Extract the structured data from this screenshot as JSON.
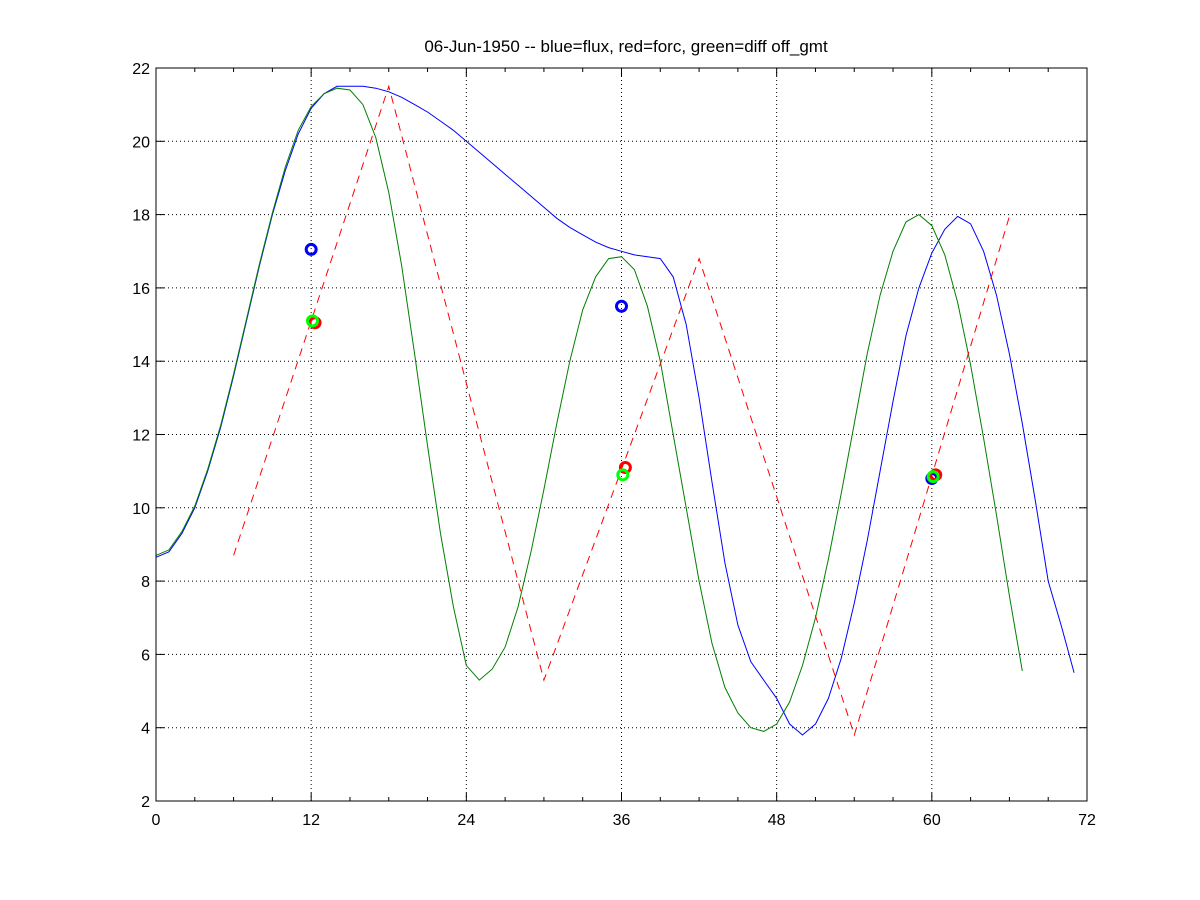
{
  "chart_data": {
    "type": "line",
    "title": "06-Jun-1950 -- blue=flux, red=forc, green=diff off_gmt",
    "xlabel": "",
    "ylabel": "",
    "xlim": [
      0,
      72
    ],
    "ylim": [
      2,
      22
    ],
    "x_ticks": [
      0,
      12,
      24,
      36,
      48,
      60,
      72
    ],
    "y_ticks": [
      2,
      4,
      6,
      8,
      10,
      12,
      14,
      16,
      18,
      20,
      22
    ],
    "x_tick_labels": [
      "0",
      "12",
      "24",
      "36",
      "48",
      "60",
      "72"
    ],
    "y_tick_labels": [
      "2",
      "4",
      "6",
      "8",
      "10",
      "12",
      "14",
      "16",
      "18",
      "20",
      "22"
    ],
    "grid": true,
    "series": [
      {
        "color": "#0000ff",
        "style": "solid",
        "points": [
          [
            0,
            8.65
          ],
          [
            1,
            8.8
          ],
          [
            2,
            9.3
          ],
          [
            3,
            10.0
          ],
          [
            4,
            11.0
          ],
          [
            5,
            12.2
          ],
          [
            6,
            13.6
          ],
          [
            7,
            15.1
          ],
          [
            8,
            16.6
          ],
          [
            9,
            18.0
          ],
          [
            10,
            19.2
          ],
          [
            11,
            20.2
          ],
          [
            12,
            20.9
          ],
          [
            13,
            21.3
          ],
          [
            14,
            21.5
          ],
          [
            15,
            21.5
          ],
          [
            16,
            21.5
          ],
          [
            17,
            21.45
          ],
          [
            18,
            21.35
          ],
          [
            19,
            21.2
          ],
          [
            20,
            21.0
          ],
          [
            21,
            20.8
          ],
          [
            22,
            20.55
          ],
          [
            23,
            20.3
          ],
          [
            24,
            20.0
          ],
          [
            25,
            19.7
          ],
          [
            26,
            19.4
          ],
          [
            27,
            19.1
          ],
          [
            28,
            18.8
          ],
          [
            29,
            18.5
          ],
          [
            30,
            18.2
          ],
          [
            31,
            17.9
          ],
          [
            32,
            17.65
          ],
          [
            33,
            17.45
          ],
          [
            34,
            17.25
          ],
          [
            35,
            17.1
          ],
          [
            36,
            17.0
          ],
          [
            37,
            16.9
          ],
          [
            38,
            16.85
          ],
          [
            39,
            16.8
          ],
          [
            40,
            16.3
          ],
          [
            41,
            15.0
          ],
          [
            42,
            13.0
          ],
          [
            43,
            10.7
          ],
          [
            44,
            8.5
          ],
          [
            45,
            6.8
          ],
          [
            46,
            5.8
          ],
          [
            47,
            5.3
          ],
          [
            48,
            4.8
          ],
          [
            49,
            4.1
          ],
          [
            50,
            3.8
          ],
          [
            51,
            4.1
          ],
          [
            52,
            4.8
          ],
          [
            53,
            5.9
          ],
          [
            54,
            7.4
          ],
          [
            55,
            9.1
          ],
          [
            56,
            11.0
          ],
          [
            57,
            12.9
          ],
          [
            58,
            14.7
          ],
          [
            59,
            16.0
          ],
          [
            60,
            16.95
          ],
          [
            61,
            17.6
          ],
          [
            62,
            17.95
          ],
          [
            63,
            17.75
          ],
          [
            64,
            17.0
          ],
          [
            65,
            15.8
          ],
          [
            66,
            14.2
          ],
          [
            67,
            12.3
          ],
          [
            68,
            10.2
          ],
          [
            69,
            8.0
          ],
          [
            70,
            6.8
          ],
          [
            71,
            5.5
          ]
        ]
      },
      {
        "color": "#008000",
        "style": "solid",
        "points": [
          [
            0,
            8.7
          ],
          [
            1,
            8.85
          ],
          [
            2,
            9.35
          ],
          [
            3,
            10.05
          ],
          [
            4,
            11.05
          ],
          [
            5,
            12.25
          ],
          [
            6,
            13.65
          ],
          [
            7,
            15.15
          ],
          [
            8,
            16.65
          ],
          [
            9,
            18.05
          ],
          [
            10,
            19.3
          ],
          [
            11,
            20.3
          ],
          [
            12,
            20.95
          ],
          [
            13,
            21.3
          ],
          [
            14,
            21.45
          ],
          [
            15,
            21.4
          ],
          [
            16,
            21.0
          ],
          [
            17,
            20.1
          ],
          [
            18,
            18.6
          ],
          [
            19,
            16.6
          ],
          [
            20,
            14.2
          ],
          [
            21,
            11.7
          ],
          [
            22,
            9.3
          ],
          [
            23,
            7.3
          ],
          [
            24,
            5.7
          ],
          [
            25,
            5.3
          ],
          [
            26,
            5.6
          ],
          [
            27,
            6.2
          ],
          [
            28,
            7.3
          ],
          [
            29,
            8.8
          ],
          [
            30,
            10.5
          ],
          [
            31,
            12.3
          ],
          [
            32,
            14.0
          ],
          [
            33,
            15.4
          ],
          [
            34,
            16.3
          ],
          [
            35,
            16.8
          ],
          [
            36,
            16.85
          ],
          [
            37,
            16.5
          ],
          [
            38,
            15.5
          ],
          [
            39,
            14.0
          ],
          [
            40,
            12.0
          ],
          [
            41,
            10.0
          ],
          [
            42,
            8.0
          ],
          [
            43,
            6.3
          ],
          [
            44,
            5.1
          ],
          [
            45,
            4.4
          ],
          [
            46,
            4.0
          ],
          [
            47,
            3.9
          ],
          [
            48,
            4.1
          ],
          [
            49,
            4.7
          ],
          [
            50,
            5.7
          ],
          [
            51,
            7.0
          ],
          [
            52,
            8.6
          ],
          [
            53,
            10.4
          ],
          [
            54,
            12.3
          ],
          [
            55,
            14.2
          ],
          [
            56,
            15.8
          ],
          [
            57,
            17.0
          ],
          [
            58,
            17.8
          ],
          [
            59,
            18.0
          ],
          [
            60,
            17.7
          ],
          [
            61,
            16.9
          ],
          [
            62,
            15.6
          ],
          [
            63,
            13.9
          ],
          [
            64,
            11.9
          ],
          [
            65,
            9.8
          ],
          [
            66,
            7.6
          ],
          [
            67,
            5.55
          ]
        ]
      },
      {
        "color": "#ff0000",
        "style": "dashed",
        "points": [
          [
            6,
            8.7
          ],
          [
            18,
            21.5
          ],
          [
            30,
            5.3
          ],
          [
            42,
            16.8
          ],
          [
            54,
            3.8
          ],
          [
            66,
            17.95
          ]
        ]
      }
    ],
    "markers": [
      {
        "color": "#0000ff",
        "points": [
          [
            12,
            17.05
          ],
          [
            36,
            15.5
          ],
          [
            60,
            10.8
          ]
        ]
      },
      {
        "color": "#ff0000",
        "points": [
          [
            12.3,
            15.05
          ],
          [
            36.3,
            11.1
          ],
          [
            60.3,
            10.9
          ]
        ]
      },
      {
        "color": "#00ff00",
        "points": [
          [
            12.1,
            15.1
          ],
          [
            36.1,
            10.9
          ],
          [
            60.1,
            10.85
          ]
        ]
      }
    ]
  }
}
